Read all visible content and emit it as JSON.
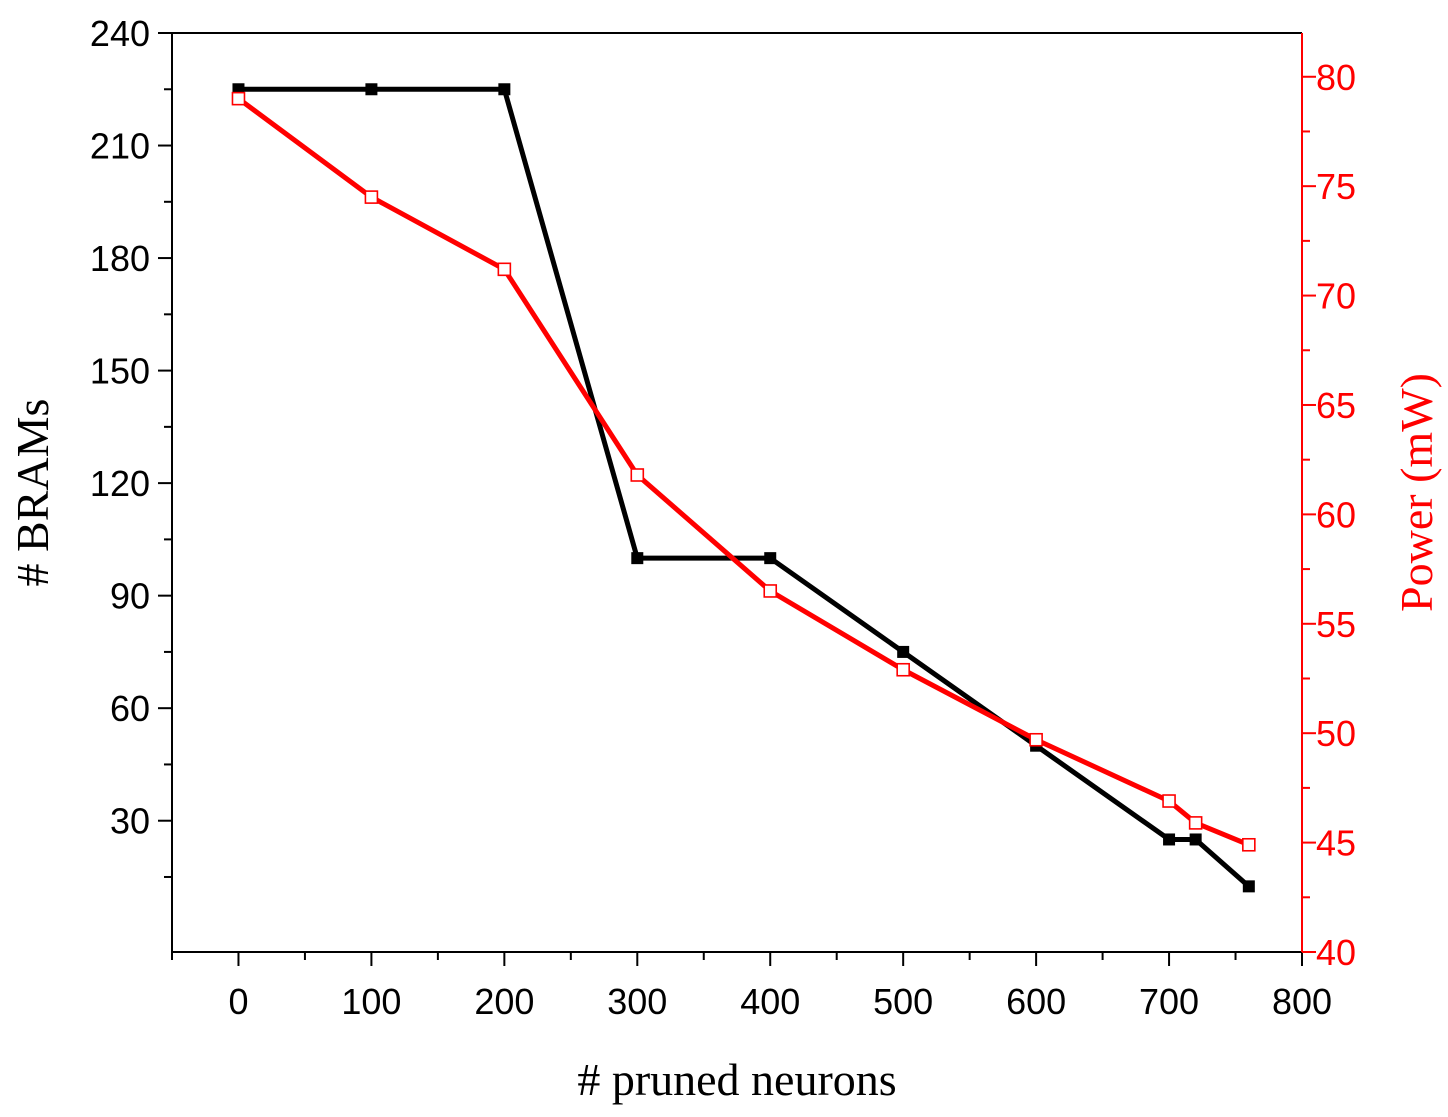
{
  "chart_data": {
    "type": "line",
    "title": "",
    "xlabel": "# pruned neurons",
    "ylabel": "# BRAMs",
    "y2label": "Power (mW)",
    "xlim": [
      -50,
      800
    ],
    "ylim": [
      -5,
      240
    ],
    "y2lim": [
      40,
      82
    ],
    "xticks": [
      0,
      100,
      200,
      300,
      400,
      500,
      600,
      700,
      800
    ],
    "yticks": [
      30,
      60,
      90,
      120,
      150,
      180,
      210,
      240
    ],
    "y2ticks": [
      40,
      45,
      50,
      55,
      60,
      65,
      70,
      75,
      80
    ],
    "x": [
      0,
      100,
      200,
      300,
      400,
      500,
      600,
      700,
      720,
      760
    ],
    "series": [
      {
        "name": "# BRAMs",
        "axis": "left",
        "color": "#000000",
        "marker": "filled-square",
        "values": [
          225,
          225,
          225,
          100,
          100,
          75,
          50,
          25,
          25,
          12.5
        ]
      },
      {
        "name": "Power (mW)",
        "axis": "right",
        "color": "#ff0000",
        "marker": "open-square",
        "values": [
          79.0,
          74.5,
          71.2,
          61.8,
          56.5,
          52.9,
          49.7,
          46.9,
          45.9,
          44.9
        ]
      }
    ],
    "grid": false,
    "legend": "none"
  }
}
